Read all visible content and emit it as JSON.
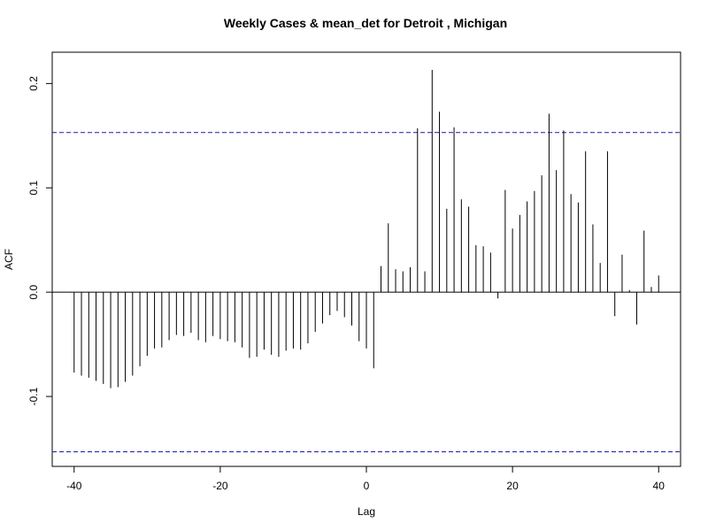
{
  "chart_data": {
    "type": "bar",
    "title": "Weekly Cases & mean_det for Detroit , Michigan",
    "xlabel": "Lag",
    "ylabel": "ACF",
    "xlim": [
      -43,
      43
    ],
    "ylim": [
      -0.167,
      0.23
    ],
    "x_ticks": [
      -40,
      -20,
      0,
      20,
      40
    ],
    "y_ticks": [
      -0.1,
      0.0,
      0.1,
      0.2
    ],
    "confidence_band": 0.153,
    "lags": [
      -40,
      -39,
      -38,
      -37,
      -36,
      -35,
      -34,
      -33,
      -32,
      -31,
      -30,
      -29,
      -28,
      -27,
      -26,
      -25,
      -24,
      -23,
      -22,
      -21,
      -20,
      -19,
      -18,
      -17,
      -16,
      -15,
      -14,
      -13,
      -12,
      -11,
      -10,
      -9,
      -8,
      -7,
      -6,
      -5,
      -4,
      -3,
      -2,
      -1,
      0,
      1,
      2,
      3,
      4,
      5,
      6,
      7,
      8,
      9,
      10,
      11,
      12,
      13,
      14,
      15,
      16,
      17,
      18,
      19,
      20,
      21,
      22,
      23,
      24,
      25,
      26,
      27,
      28,
      29,
      30,
      31,
      32,
      33,
      34,
      35,
      36,
      37,
      38,
      39,
      40
    ],
    "values": [
      -0.077,
      -0.08,
      -0.082,
      -0.085,
      -0.088,
      -0.092,
      -0.091,
      -0.086,
      -0.08,
      -0.071,
      -0.061,
      -0.054,
      -0.053,
      -0.046,
      -0.041,
      -0.042,
      -0.039,
      -0.046,
      -0.048,
      -0.042,
      -0.045,
      -0.047,
      -0.048,
      -0.053,
      -0.063,
      -0.062,
      -0.055,
      -0.06,
      -0.062,
      -0.056,
      -0.054,
      -0.055,
      -0.049,
      -0.038,
      -0.03,
      -0.022,
      -0.018,
      -0.024,
      -0.032,
      -0.047,
      -0.054,
      -0.073,
      0.025,
      0.066,
      0.022,
      0.02,
      0.024,
      0.157,
      0.02,
      0.213,
      0.173,
      0.08,
      0.158,
      0.089,
      0.082,
      0.045,
      0.044,
      0.038,
      -0.006,
      0.098,
      0.061,
      0.074,
      0.087,
      0.097,
      0.112,
      0.171,
      0.117,
      0.155,
      0.094,
      0.086,
      0.135,
      0.065,
      0.028,
      0.135,
      -0.023,
      0.036,
      0.002,
      -0.031,
      0.059,
      0.005,
      0.016
    ],
    "grid": false,
    "series_color": "#000000",
    "band_color": "#1a1aa8"
  }
}
